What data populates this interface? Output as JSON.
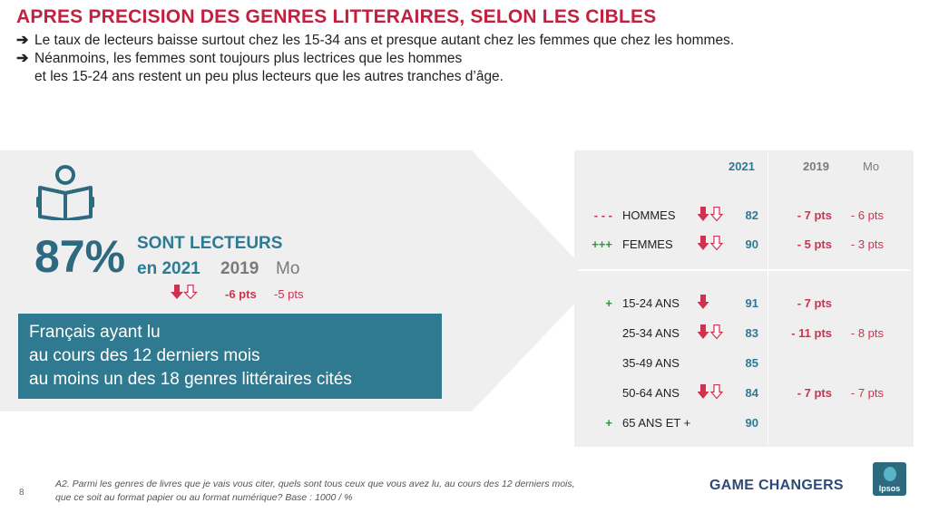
{
  "header": {
    "title": "APRES PRECISION DES GENRES LITTERAIRES, SELON LES CIBLES",
    "bullets": [
      "Le taux de lecteurs baisse surtout chez les 15-34 ans et presque autant chez les femmes que chez les hommes.",
      "Néanmoins, les femmes sont toujours plus lectrices que les hommes"
    ],
    "bullet2_cont": "et les 15-24 ans restent un peu plus lecteurs que les autres tranches d’âge.",
    "arrow_glyph": "➔"
  },
  "summary": {
    "icon": "reader-icon",
    "pct": "87%",
    "label": "SONT LECTEURS",
    "year_current": "en 2021",
    "year_prev": "2019",
    "mo": "Mo",
    "delta_2019": "-6 pts",
    "delta_mo": "-5 pts",
    "box_lines": [
      "Français ayant lu",
      "au cours des 12 derniers mois",
      "au moins un des 18 genres littéraires cités"
    ]
  },
  "table": {
    "headers": {
      "y2021": "2021",
      "y2019": "2019",
      "mo": "Mo"
    },
    "rows": [
      {
        "sig": "- - -",
        "sig_color": "red",
        "label": "HOMMES",
        "arrows": "double",
        "v2021": "82",
        "v2019": "- 7 pts",
        "vmo": "- 6 pts"
      },
      {
        "sig": "+++",
        "sig_color": "green",
        "label": "FEMMES",
        "arrows": "double",
        "v2021": "90",
        "v2019": "- 5 pts",
        "vmo": "- 3 pts"
      },
      {
        "sig": "+",
        "sig_color": "green",
        "label": "15-24 ANS",
        "arrows": "single",
        "v2021": "91",
        "v2019": "- 7 pts",
        "vmo": ""
      },
      {
        "sig": "",
        "sig_color": "red",
        "label": "25-34 ANS",
        "arrows": "double",
        "v2021": "83",
        "v2019": "- 11 pts",
        "vmo": "- 8 pts"
      },
      {
        "sig": "",
        "sig_color": "red",
        "label": "35-49 ANS",
        "arrows": "none",
        "v2021": "85",
        "v2019": "",
        "vmo": ""
      },
      {
        "sig": "",
        "sig_color": "red",
        "label": "50-64 ANS",
        "arrows": "double",
        "v2021": "84",
        "v2019": "- 7 pts",
        "vmo": "- 7 pts"
      },
      {
        "sig": "+",
        "sig_color": "green",
        "label": "65 ANS ET +",
        "arrows": "none",
        "v2021": "90",
        "v2019": "",
        "vmo": ""
      }
    ]
  },
  "footer": {
    "page": "8",
    "note_line1": "A2. Parmi les genres de livres que je vais vous citer, quels sont tous ceux que vous avez lu, au cours des 12 derniers mois,",
    "note_line2": "que ce soit au format papier ou au format numérique? Base : 1000 / %",
    "brand": "GAME CHANGERS",
    "logo": "Ipsos"
  },
  "colors": {
    "title_red": "#c0213f",
    "teal": "#2d7a95",
    "box_teal": "#2f7a90",
    "delta_red": "#d0314f",
    "sig_green": "#2a9a3a",
    "panel_grey": "#efefef"
  }
}
